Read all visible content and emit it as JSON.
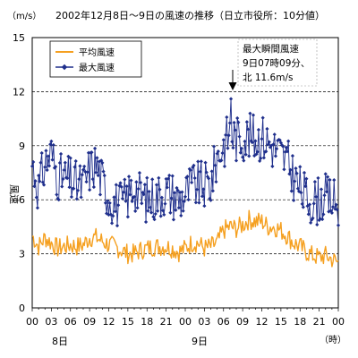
{
  "chart_data": {
    "type": "line",
    "title": "2002年12月8日～9日の風速の推移（日立市役所：10分値）",
    "yunit": "（m/s）",
    "ylabel": "風速",
    "xunit": "（時）",
    "ylim": [
      0,
      15
    ],
    "yticks": [
      "0",
      "3",
      "6",
      "9",
      "12",
      "15"
    ],
    "yticks_values": [
      0,
      3,
      6,
      9,
      12,
      15
    ],
    "grid": "horizontal-dashed",
    "legend_position": "top-left",
    "x_hours_range": [
      0,
      48
    ],
    "xticks": [
      {
        "hour": 0,
        "label": "00"
      },
      {
        "hour": 3,
        "label": "03"
      },
      {
        "hour": 6,
        "label": "06"
      },
      {
        "hour": 9,
        "label": "09"
      },
      {
        "hour": 12,
        "label": "12"
      },
      {
        "hour": 15,
        "label": "15"
      },
      {
        "hour": 18,
        "label": "18"
      },
      {
        "hour": 21,
        "label": "21"
      },
      {
        "hour": 24,
        "label": "00"
      },
      {
        "hour": 27,
        "label": "03"
      },
      {
        "hour": 30,
        "label": "06"
      },
      {
        "hour": 33,
        "label": "09"
      },
      {
        "hour": 36,
        "label": "12"
      },
      {
        "hour": 39,
        "label": "15"
      },
      {
        "hour": 42,
        "label": "18"
      },
      {
        "hour": 45,
        "label": "21"
      },
      {
        "hour": 48,
        "label": "00"
      }
    ],
    "day_labels": [
      {
        "hour": 3,
        "label": "8日"
      },
      {
        "hour": 27,
        "label": "9日"
      }
    ],
    "annotation": {
      "lines": [
        "最大瞬間風速",
        "9日07時09分、",
        "北 11.6m/s"
      ],
      "hour": 31.15,
      "value": 11.6
    },
    "series": [
      {
        "name": "平均風速",
        "color": "#f5a020",
        "marker": "none",
        "hourly": [
          {
            "x": 0,
            "y": 4.0
          },
          {
            "x": 1,
            "y": 3.4
          },
          {
            "x": 2,
            "y": 3.9
          },
          {
            "x": 3,
            "y": 3.6
          },
          {
            "x": 4,
            "y": 3.3
          },
          {
            "x": 5,
            "y": 3.4
          },
          {
            "x": 6,
            "y": 3.5
          },
          {
            "x": 7,
            "y": 3.4
          },
          {
            "x": 8,
            "y": 3.5
          },
          {
            "x": 9,
            "y": 3.9
          },
          {
            "x": 10,
            "y": 3.9
          },
          {
            "x": 11,
            "y": 3.7
          },
          {
            "x": 12,
            "y": 3.5
          },
          {
            "x": 13,
            "y": 3.4
          },
          {
            "x": 14,
            "y": 3.2
          },
          {
            "x": 15,
            "y": 3.0
          },
          {
            "x": 16,
            "y": 3.0
          },
          {
            "x": 17,
            "y": 3.2
          },
          {
            "x": 18,
            "y": 3.3
          },
          {
            "x": 19,
            "y": 3.4
          },
          {
            "x": 20,
            "y": 3.4
          },
          {
            "x": 21,
            "y": 3.4
          },
          {
            "x": 22,
            "y": 3.3
          },
          {
            "x": 23,
            "y": 3.1
          },
          {
            "x": 24,
            "y": 3.3
          },
          {
            "x": 25,
            "y": 3.6
          },
          {
            "x": 26,
            "y": 3.6
          },
          {
            "x": 27,
            "y": 3.3
          },
          {
            "x": 28,
            "y": 3.4
          },
          {
            "x": 29,
            "y": 3.6
          },
          {
            "x": 30,
            "y": 4.3
          },
          {
            "x": 31,
            "y": 4.5
          },
          {
            "x": 32,
            "y": 4.4
          },
          {
            "x": 33,
            "y": 4.6
          },
          {
            "x": 34,
            "y": 4.9
          },
          {
            "x": 35,
            "y": 4.8
          },
          {
            "x": 36,
            "y": 4.8
          },
          {
            "x": 37,
            "y": 4.5
          },
          {
            "x": 38,
            "y": 4.5
          },
          {
            "x": 39,
            "y": 4.3
          },
          {
            "x": 40,
            "y": 4.0
          },
          {
            "x": 41,
            "y": 3.6
          },
          {
            "x": 42,
            "y": 3.4
          },
          {
            "x": 43,
            "y": 3.1
          },
          {
            "x": 44,
            "y": 2.9
          },
          {
            "x": 45,
            "y": 2.8
          },
          {
            "x": 46,
            "y": 2.9
          },
          {
            "x": 47,
            "y": 2.7
          },
          {
            "x": 48,
            "y": 2.5
          }
        ]
      },
      {
        "name": "最大風速",
        "color": "#1f2f8c",
        "marker": "diamond",
        "hourly": [
          {
            "x": 0,
            "y": 8.0
          },
          {
            "x": 1,
            "y": 6.6
          },
          {
            "x": 2,
            "y": 8.0
          },
          {
            "x": 3,
            "y": 8.6
          },
          {
            "x": 4,
            "y": 7.3
          },
          {
            "x": 5,
            "y": 7.2
          },
          {
            "x": 6,
            "y": 7.1
          },
          {
            "x": 7,
            "y": 6.8
          },
          {
            "x": 8,
            "y": 6.8
          },
          {
            "x": 9,
            "y": 7.7
          },
          {
            "x": 10,
            "y": 8.0
          },
          {
            "x": 11,
            "y": 7.0
          },
          {
            "x": 12,
            "y": 6.2
          },
          {
            "x": 13,
            "y": 5.8
          },
          {
            "x": 14,
            "y": 5.7
          },
          {
            "x": 15,
            "y": 6.2
          },
          {
            "x": 16,
            "y": 6.8
          },
          {
            "x": 17,
            "y": 6.2
          },
          {
            "x": 18,
            "y": 6.0
          },
          {
            "x": 19,
            "y": 6.1
          },
          {
            "x": 20,
            "y": 6.3
          },
          {
            "x": 21,
            "y": 6.5
          },
          {
            "x": 22,
            "y": 6.3
          },
          {
            "x": 23,
            "y": 6.0
          },
          {
            "x": 24,
            "y": 6.3
          },
          {
            "x": 25,
            "y": 6.8
          },
          {
            "x": 26,
            "y": 6.8
          },
          {
            "x": 27,
            "y": 6.8
          },
          {
            "x": 28,
            "y": 6.9
          },
          {
            "x": 29,
            "y": 8.4
          },
          {
            "x": 30,
            "y": 9.0
          },
          {
            "x": 31,
            "y": 9.8
          },
          {
            "x": 32,
            "y": 9.4
          },
          {
            "x": 33,
            "y": 9.5
          },
          {
            "x": 34,
            "y": 9.5
          },
          {
            "x": 35,
            "y": 9.4
          },
          {
            "x": 36,
            "y": 9.5
          },
          {
            "x": 37,
            "y": 9.2
          },
          {
            "x": 38,
            "y": 8.9
          },
          {
            "x": 39,
            "y": 8.5
          },
          {
            "x": 40,
            "y": 8.1
          },
          {
            "x": 41,
            "y": 7.3
          },
          {
            "x": 42,
            "y": 6.6
          },
          {
            "x": 43,
            "y": 6.1
          },
          {
            "x": 44,
            "y": 5.9
          },
          {
            "x": 45,
            "y": 6.0
          },
          {
            "x": 46,
            "y": 6.1
          },
          {
            "x": 47,
            "y": 6.0
          },
          {
            "x": 48,
            "y": 5.6
          }
        ]
      }
    ]
  }
}
